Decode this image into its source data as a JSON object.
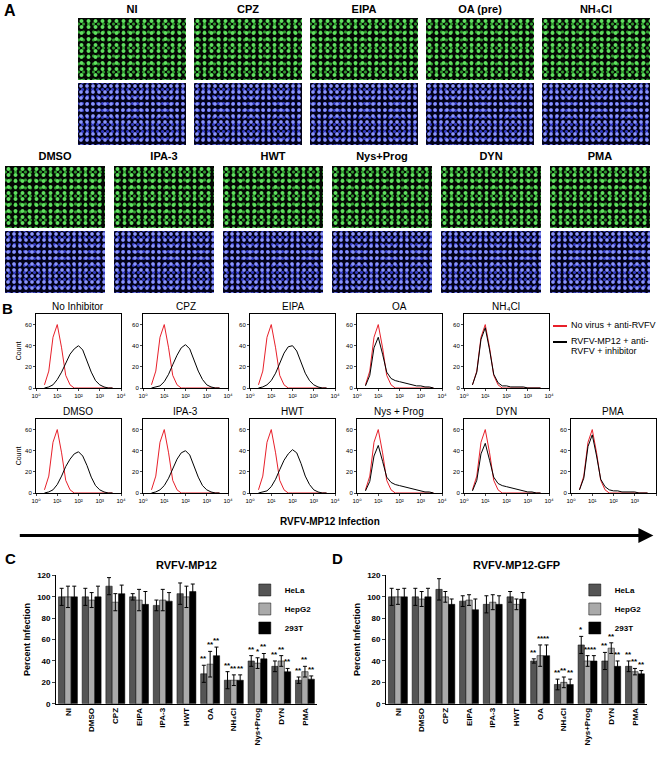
{
  "images": {
    "label": "A",
    "rows": [
      [
        "NI",
        "CPZ",
        "EIPA",
        "OA (pre)",
        "NH₄Cl"
      ],
      [
        "DMSO",
        "IPA-3",
        "HWT",
        "Nys+Prog",
        "DYN",
        "PMA"
      ]
    ]
  },
  "chart_data": [
    {
      "type": "line",
      "label": "B",
      "xlabel": "RVFV-MP12 Infection",
      "ylabel": "Count",
      "log": "x",
      "xlim": [
        1,
        10000
      ],
      "xticks": [
        {
          "value": 1,
          "label": "10⁰"
        },
        {
          "value": 10,
          "label": "10¹"
        },
        {
          "value": 100,
          "label": "10²"
        },
        {
          "value": 1000,
          "label": "10³"
        },
        {
          "value": 10000,
          "label": "10⁴"
        }
      ],
      "ylim": [
        0,
        70
      ],
      "yticks": [
        0,
        20,
        40,
        60
      ],
      "x": [
        2.5,
        4,
        6.3,
        10,
        16,
        25,
        40,
        63,
        100,
        158,
        251,
        398,
        631,
        1000,
        1585,
        2512,
        3981
      ],
      "series": [
        {
          "name": "No virus + anti-RVFV",
          "color": "#e8202a"
        },
        {
          "name": "RVFV-MP12 + anti-RVFV + inhibitor",
          "color": "#000000"
        }
      ],
      "panels": [
        {
          "title": "No Inhibitor",
          "values": [
            [
              3,
              16,
              48,
              60,
              38,
              12,
              3,
              0,
              0,
              0,
              0,
              0,
              0,
              0,
              0,
              0,
              0
            ],
            [
              0,
              1,
              3,
              8,
              15,
              24,
              32,
              37,
              40,
              36,
              26,
              15,
              7,
              3,
              1,
              0,
              0
            ]
          ]
        },
        {
          "title": "CPZ",
          "values": [
            [
              3,
              16,
              48,
              60,
              38,
              12,
              3,
              0,
              0,
              0,
              0,
              0,
              0,
              0,
              0,
              0,
              0
            ],
            [
              0,
              1,
              2,
              6,
              13,
              22,
              31,
              38,
              41,
              37,
              27,
              16,
              8,
              3,
              1,
              0,
              0
            ]
          ]
        },
        {
          "title": "EIPA",
          "values": [
            [
              3,
              16,
              48,
              60,
              38,
              12,
              3,
              0,
              0,
              0,
              0,
              0,
              0,
              0,
              0,
              0,
              0
            ],
            [
              0,
              1,
              3,
              7,
              14,
              24,
              33,
              39,
              40,
              35,
              25,
              14,
              7,
              3,
              1,
              0,
              0
            ]
          ]
        },
        {
          "title": "OA",
          "values": [
            [
              3,
              16,
              48,
              60,
              38,
              12,
              3,
              0,
              0,
              0,
              0,
              0,
              0,
              0,
              0,
              0,
              0
            ],
            [
              2,
              12,
              38,
              48,
              32,
              15,
              9,
              7,
              6,
              5,
              4,
              3,
              2,
              2,
              1,
              1,
              0
            ]
          ]
        },
        {
          "title": "NH₄Cl",
          "values": [
            [
              3,
              16,
              48,
              60,
              38,
              12,
              3,
              0,
              0,
              0,
              0,
              0,
              0,
              0,
              0,
              0,
              0
            ],
            [
              3,
              15,
              46,
              57,
              36,
              13,
              5,
              2,
              2,
              1,
              1,
              1,
              1,
              0,
              0,
              0,
              0
            ]
          ]
        },
        {
          "title": "DMSO",
          "values": [
            [
              3,
              16,
              48,
              60,
              38,
              12,
              3,
              0,
              0,
              0,
              0,
              0,
              0,
              0,
              0,
              0,
              0
            ],
            [
              0,
              1,
              3,
              8,
              16,
              25,
              32,
              37,
              39,
              35,
              26,
              15,
              7,
              3,
              1,
              0,
              0
            ]
          ]
        },
        {
          "title": "IPA-3",
          "values": [
            [
              3,
              16,
              48,
              60,
              38,
              12,
              3,
              0,
              0,
              0,
              0,
              0,
              0,
              0,
              0,
              0,
              0
            ],
            [
              0,
              1,
              3,
              7,
              14,
              23,
              32,
              38,
              40,
              36,
              26,
              15,
              7,
              3,
              1,
              0,
              0
            ]
          ]
        },
        {
          "title": "HWT",
          "values": [
            [
              3,
              16,
              48,
              60,
              38,
              12,
              3,
              0,
              0,
              0,
              0,
              0,
              0,
              0,
              0,
              0,
              0
            ],
            [
              0,
              1,
              2,
              6,
              13,
              22,
              31,
              37,
              41,
              38,
              28,
              16,
              8,
              3,
              1,
              0,
              0
            ]
          ]
        },
        {
          "title": "Nys + Prog",
          "values": [
            [
              3,
              16,
              48,
              60,
              38,
              12,
              3,
              0,
              0,
              0,
              0,
              0,
              0,
              0,
              0,
              0,
              0
            ],
            [
              2,
              11,
              35,
              45,
              30,
              15,
              10,
              8,
              7,
              6,
              5,
              4,
              3,
              2,
              1,
              1,
              0
            ]
          ]
        },
        {
          "title": "DYN",
          "values": [
            [
              3,
              16,
              48,
              60,
              38,
              12,
              3,
              0,
              0,
              0,
              0,
              0,
              0,
              0,
              0,
              0,
              0
            ],
            [
              2,
              12,
              37,
              47,
              31,
              15,
              9,
              7,
              6,
              5,
              4,
              3,
              2,
              1,
              1,
              0,
              0
            ]
          ]
        },
        {
          "title": "PMA",
          "values": [
            [
              3,
              16,
              48,
              60,
              38,
              12,
              3,
              0,
              0,
              0,
              0,
              0,
              0,
              0,
              0,
              0,
              0
            ],
            [
              3,
              14,
              44,
              55,
              35,
              13,
              6,
              3,
              2,
              2,
              1,
              1,
              1,
              1,
              0,
              0,
              0
            ]
          ]
        }
      ]
    },
    {
      "type": "bar",
      "label": "C",
      "title": "RVFV-MP12",
      "ylabel": "Percent Infection",
      "legend": "upper right",
      "categories": [
        "NI",
        "DMSO",
        "CPZ",
        "EIPA",
        "IPA-3",
        "HWT",
        "OA",
        "NH₄Cl",
        "Nys+Prog",
        "DYN",
        "PMA"
      ],
      "ylim": [
        0,
        120
      ],
      "yticks": [
        0,
        20,
        40,
        60,
        80,
        100,
        120
      ],
      "series": [
        {
          "name": "HeLa",
          "color": "#555555",
          "values": [
            100,
            100,
            110,
            100,
            92,
            103,
            28,
            22,
            40,
            35,
            22
          ],
          "errors": [
            8,
            8,
            8,
            3,
            5,
            10,
            8,
            8,
            5,
            5,
            3
          ],
          "significance": [
            null,
            null,
            null,
            null,
            null,
            null,
            "**",
            "**",
            "**",
            "**",
            "**"
          ]
        },
        {
          "name": "HepG2",
          "color": "#aaaaaa",
          "values": [
            100,
            97,
            95,
            97,
            97,
            100,
            37,
            22,
            38,
            40,
            30
          ],
          "errors": [
            10,
            7,
            8,
            10,
            10,
            10,
            12,
            5,
            5,
            5,
            5
          ],
          "significance": [
            null,
            null,
            null,
            null,
            null,
            null,
            "**",
            "**",
            "*",
            "**",
            "**"
          ]
        },
        {
          "name": "293T",
          "color": "#000000",
          "values": [
            100,
            100,
            103,
            93,
            96,
            105,
            45,
            22,
            42,
            30,
            23
          ],
          "errors": [
            10,
            10,
            8,
            12,
            8,
            7,
            8,
            5,
            5,
            3,
            3
          ],
          "significance": [
            null,
            null,
            null,
            null,
            null,
            null,
            "**",
            "**",
            "**",
            "**",
            "**"
          ]
        }
      ]
    },
    {
      "type": "bar",
      "label": "D",
      "title": "RVFV-MP12-GFP",
      "ylabel": "Percent Infection",
      "legend": "upper right",
      "categories": [
        "NI",
        "DMSO",
        "CPZ",
        "EIPA",
        "IPA-3",
        "HWT",
        "OA",
        "NH₄Cl",
        "Nys+Prog",
        "DYN",
        "PMA"
      ],
      "ylim": [
        0,
        120
      ],
      "yticks": [
        0,
        20,
        40,
        60,
        80,
        100,
        120
      ],
      "series": [
        {
          "name": "HeLa",
          "color": "#555555",
          "values": [
            100,
            100,
            107,
            96,
            93,
            100,
            40,
            18,
            55,
            40,
            35
          ],
          "errors": [
            8,
            8,
            10,
            5,
            8,
            5,
            2,
            5,
            8,
            8,
            5
          ],
          "significance": [
            null,
            null,
            null,
            null,
            null,
            null,
            "**",
            "**",
            "*",
            "**",
            "**"
          ]
        },
        {
          "name": "HepG2",
          "color": "#aaaaaa",
          "values": [
            100,
            98,
            100,
            97,
            95,
            93,
            45,
            20,
            40,
            52,
            30
          ],
          "errors": [
            7,
            7,
            5,
            5,
            7,
            5,
            10,
            5,
            5,
            5,
            3
          ],
          "significance": [
            null,
            null,
            null,
            null,
            null,
            null,
            "**",
            "**",
            "**",
            "**",
            "**"
          ]
        },
        {
          "name": "293T",
          "color": "#000000",
          "values": [
            100,
            100,
            93,
            88,
            93,
            98,
            45,
            18,
            40,
            35,
            28
          ],
          "errors": [
            8,
            8,
            5,
            10,
            8,
            6,
            10,
            5,
            5,
            5,
            3
          ],
          "significance": [
            null,
            null,
            null,
            null,
            null,
            null,
            "**",
            "**",
            "**",
            "**",
            "**"
          ]
        }
      ]
    }
  ]
}
